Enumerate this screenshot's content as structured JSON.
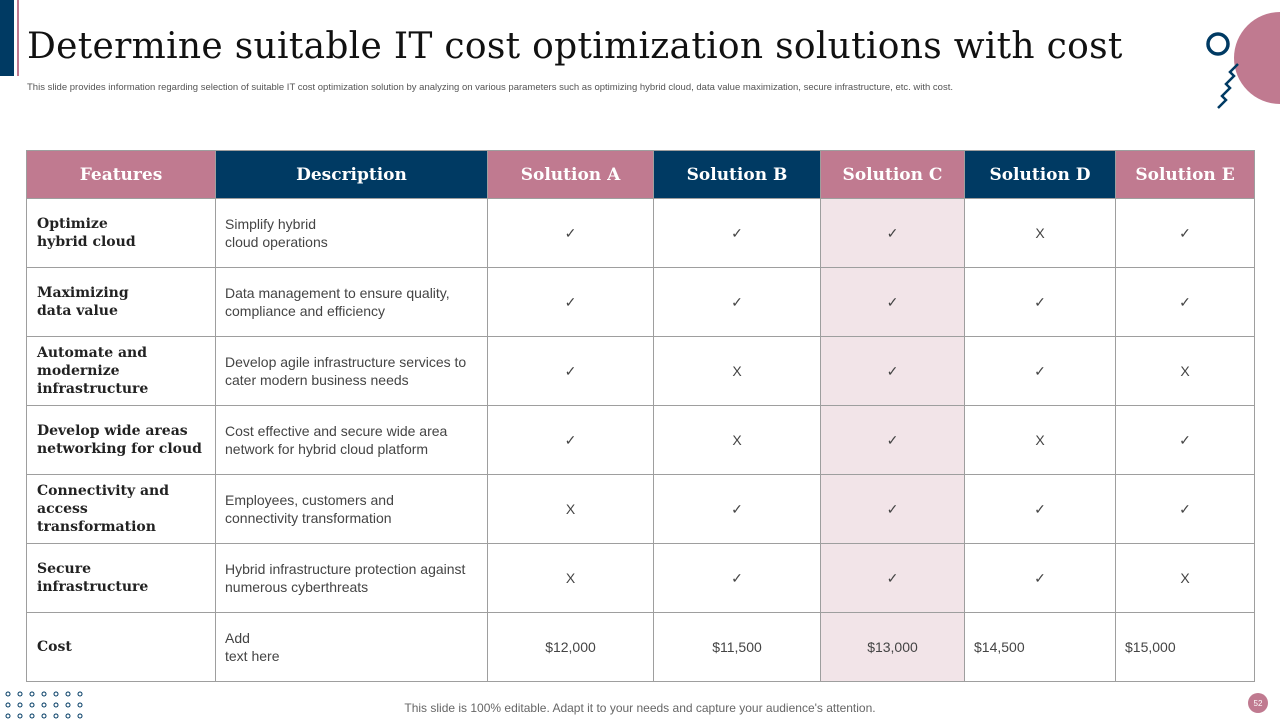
{
  "title": "Determine suitable IT cost optimization solutions with cost",
  "subtitle": "This slide provides information regarding selection of suitable IT  cost optimization solution by analyzing on various parameters such as optimizing hybrid cloud, data value maximization,  secure infrastructure, etc. with cost.",
  "table": {
    "headers": [
      "Features",
      "Description",
      "Solution A",
      "Solution B",
      "Solution C",
      "Solution D",
      "Solution E"
    ],
    "rows": [
      {
        "feature": [
          "Optimize",
          "hybrid cloud"
        ],
        "description": [
          "Simplify hybrid",
          "cloud operations"
        ],
        "marks": [
          "✓",
          "✓",
          "✓",
          "X",
          "✓"
        ]
      },
      {
        "feature": [
          "Maximizing",
          "data value"
        ],
        "description": [
          "Data management to ensure quality,",
          "compliance and efficiency"
        ],
        "marks": [
          "✓",
          "✓",
          "✓",
          "✓",
          "✓"
        ]
      },
      {
        "feature": [
          "Automate and",
          "modernize",
          "infrastructure"
        ],
        "description": [
          "Develop agile infrastructure services to",
          "cater modern business needs"
        ],
        "marks": [
          "✓",
          "X",
          "✓",
          "✓",
          "X"
        ]
      },
      {
        "feature": [
          "Develop wide areas",
          "networking for cloud"
        ],
        "description": [
          "Cost effective and secure wide area",
          "network for hybrid cloud platform"
        ],
        "marks": [
          "✓",
          "X",
          "✓",
          "X",
          "✓"
        ]
      },
      {
        "feature": [
          "Connectivity and",
          "access transformation"
        ],
        "description": [
          "Employees, customers and",
          "connectivity transformation"
        ],
        "marks": [
          "X",
          "✓",
          "✓",
          "✓",
          "✓"
        ]
      },
      {
        "feature": [
          "Secure",
          "infrastructure"
        ],
        "description": [
          "Hybrid infrastructure protection against",
          "numerous cyberthreats"
        ],
        "marks": [
          "X",
          "✓",
          "✓",
          "✓",
          "X"
        ]
      }
    ],
    "cost_row": {
      "feature": "Cost",
      "description": [
        "Add",
        "text here"
      ],
      "values": [
        "$12,000",
        "$11,500",
        "$13,000",
        "$14,500",
        "$15,000"
      ]
    }
  },
  "footer_note": "This slide is 100% editable. Adapt it to your needs and capture your audience's attention.",
  "page_number": "52",
  "colors": {
    "navy": "#003a63",
    "pink": "#c07a90",
    "highlight": "#f2e4e8"
  }
}
